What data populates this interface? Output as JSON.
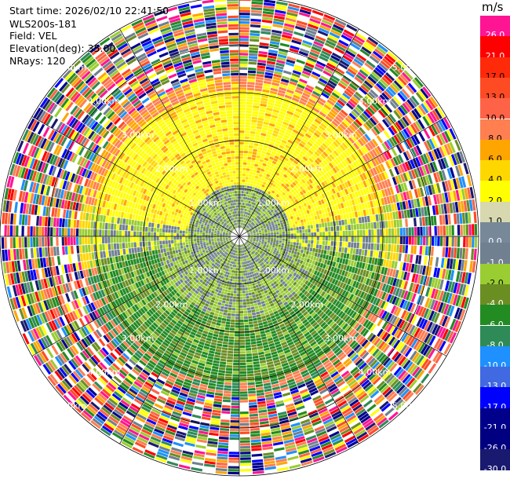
{
  "header": {
    "start_time": "Start time: 2026/02/10 22:41:50",
    "instrument": "WLS200s-181",
    "field": "Field: VEL",
    "elevation": "Elevation(deg): 35.00",
    "nrays": "NRays: 120"
  },
  "colorbar": {
    "unit": "m/s",
    "bins": [
      {
        "label": "26.0",
        "color": "#ff1493"
      },
      {
        "label": "21.0",
        "color": "#ff0000"
      },
      {
        "label": "17.0",
        "color": "#ff2a0a"
      },
      {
        "label": "13.0",
        "color": "#ff4b24"
      },
      {
        "label": "10.0",
        "color": "#ff6347"
      },
      {
        "label": "8.0",
        "color": "#ff7f50"
      },
      {
        "label": "6.0",
        "color": "#ffa500"
      },
      {
        "label": "4.0",
        "color": "#ffd700"
      },
      {
        "label": "2.0",
        "color": "#ffff00"
      },
      {
        "label": "1.0",
        "color": "#d8d8b0"
      },
      {
        "label": "0.0",
        "color": "#778899"
      },
      {
        "label": "-1.0",
        "color": "#708090"
      },
      {
        "label": "-2.0",
        "color": "#9acd32"
      },
      {
        "label": "-4.0",
        "color": "#6b8e23"
      },
      {
        "label": "-6.0",
        "color": "#228b22"
      },
      {
        "label": "-8.0",
        "color": "#2e8b57"
      },
      {
        "label": "-10.0",
        "color": "#1e90ff"
      },
      {
        "label": "-13.0",
        "color": "#4169e1"
      },
      {
        "label": "-17.0",
        "color": "#0000ff"
      },
      {
        "label": "-21.0",
        "color": "#00008b"
      },
      {
        "label": "-26.0",
        "color": "#000080"
      },
      {
        "label": "-30.0",
        "color": "#191970"
      }
    ]
  },
  "chart_data": {
    "type": "heatmap",
    "projection": "polar PPI (plan position indicator)",
    "field": "VEL",
    "units": "m/s",
    "elevation_deg": 35.0,
    "n_rays": 120,
    "range_ring_labels": [
      "1.00km",
      "2.00km",
      "3.00km",
      "4.00km",
      "5.00km"
    ],
    "range_rings_km": [
      1,
      2,
      3,
      4,
      5
    ],
    "max_range_km": 5.0,
    "spoke_angles_deg": [
      0,
      30,
      60,
      90,
      120,
      150,
      180,
      210,
      240,
      270,
      300,
      330
    ],
    "pattern": {
      "inner_core": "mixed gray and light green (about -2 to 0 m/s)",
      "northern_arc": "yellow/orange (2 to 6 m/s), approaching",
      "southern_arc": "green/olive (-2 to -6 m/s), receding",
      "outer_ring": "noisy multicolored values beyond about 3.3 km"
    }
  }
}
